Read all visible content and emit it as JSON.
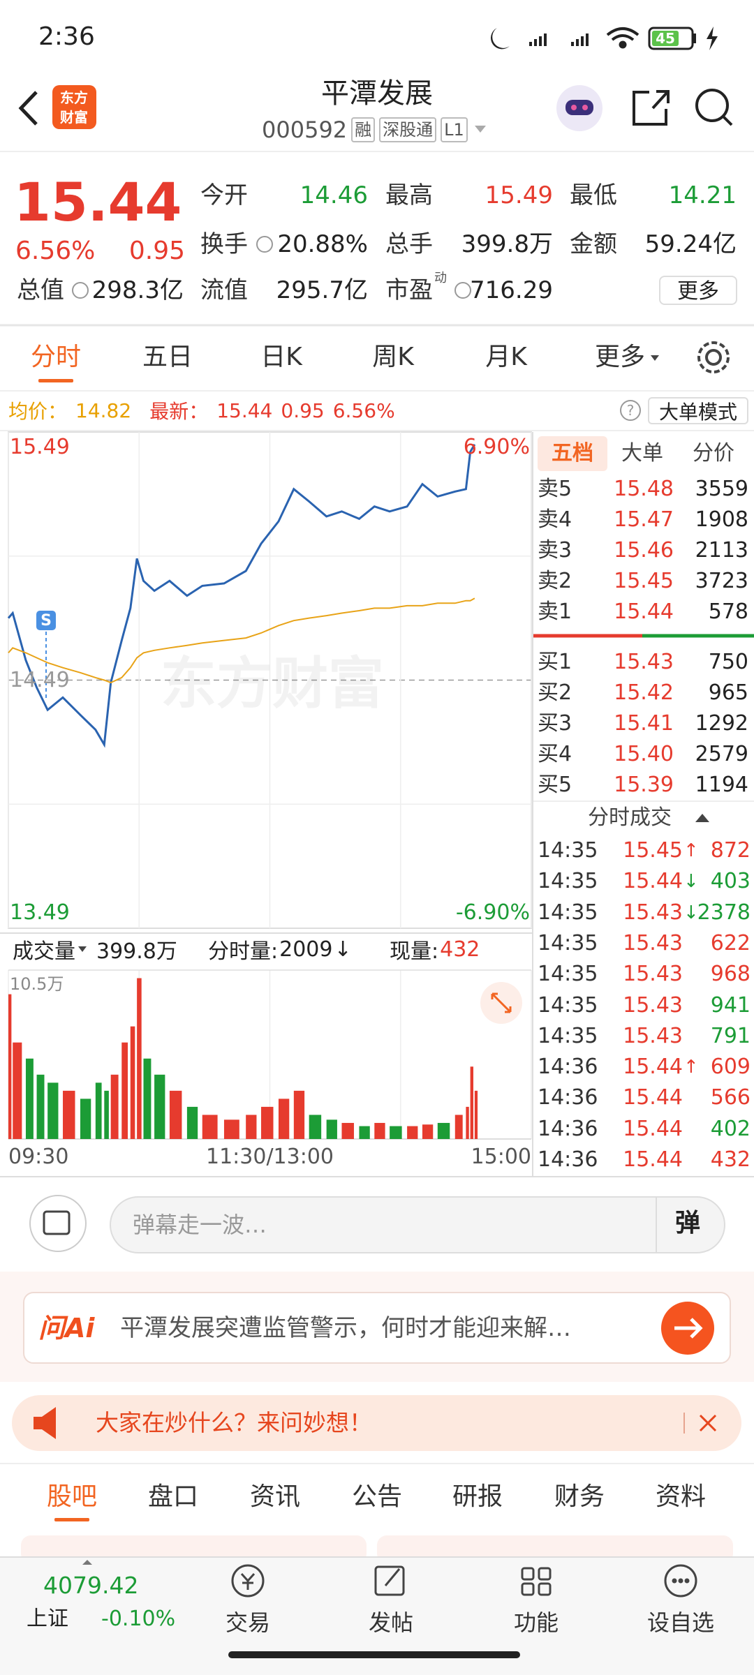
{
  "status_bar": {
    "time": "2:36",
    "battery": "45"
  },
  "header": {
    "logo": [
      "东方",
      "财富"
    ],
    "title": "平潭发展",
    "code": "000592",
    "tags": [
      "融",
      "深股通",
      "L1"
    ]
  },
  "quote": {
    "price": "15.44",
    "change_pct": "6.56%",
    "change": "0.95",
    "more": "更多",
    "fields": [
      {
        "label": "今开",
        "value": "14.46",
        "color": "#1c9c36"
      },
      {
        "label": "最高",
        "value": "15.49",
        "color": "#e63b2e"
      },
      {
        "label": "最低",
        "value": "14.21",
        "color": "#1c9c36"
      },
      {
        "label": "换手",
        "value": "20.88%"
      },
      {
        "label": "总手",
        "value": "399.8万"
      },
      {
        "label": "金额",
        "value": "59.24亿"
      },
      {
        "label": "总值",
        "value": "298.3亿"
      },
      {
        "label": "流值",
        "value": "295.7亿"
      },
      {
        "label": "市盈",
        "sup": "动",
        "value": "716.29"
      }
    ]
  },
  "chart_tabs": [
    "分时",
    "五日",
    "日K",
    "周K",
    "月K",
    "更多"
  ],
  "info_line": {
    "avg_label": "均价：",
    "avg": "14.82",
    "last_label": "最新：",
    "last": "15.44",
    "change": "0.95",
    "change_pct": "6.56%",
    "help": "?",
    "mode": "大单模式"
  },
  "chart": {
    "type": "line",
    "watermark": "东方财富",
    "marker": "S",
    "x": [
      0,
      2,
      8,
      13,
      18,
      25,
      33,
      40,
      44,
      47,
      52,
      56,
      59,
      62,
      67,
      74,
      82,
      89,
      99,
      109,
      116,
      124,
      131,
      138,
      146,
      153,
      161,
      168,
      175,
      183,
      190,
      197,
      205,
      210,
      212,
      214
    ],
    "xlim": [
      0,
      240
    ],
    "xticks": [
      {
        "value": 0,
        "label": "09:30"
      },
      {
        "value": 120,
        "label": "11:30/13:00"
      },
      {
        "value": 240,
        "label": "15:00"
      }
    ],
    "ylim": [
      13.49,
      15.49
    ],
    "yticks": [
      13.49,
      14.49,
      15.49
    ],
    "pct_labels": [
      "6.90%",
      "-6.90%"
    ],
    "series": [
      {
        "color": "#2a63b0",
        "values": [
          14.74,
          14.76,
          14.57,
          14.46,
          14.37,
          14.42,
          14.35,
          14.29,
          14.23,
          14.48,
          14.65,
          14.78,
          14.98,
          14.89,
          14.85,
          14.89,
          14.83,
          14.87,
          14.88,
          14.93,
          15.04,
          15.13,
          15.26,
          15.21,
          15.15,
          15.17,
          15.14,
          15.19,
          15.17,
          15.19,
          15.28,
          15.23,
          15.25,
          15.26,
          15.41,
          15.44
        ]
      },
      {
        "color": "#e8a317",
        "values": [
          14.6,
          14.62,
          14.6,
          14.58,
          14.56,
          14.54,
          14.52,
          14.5,
          14.49,
          14.48,
          14.5,
          14.54,
          14.58,
          14.6,
          14.61,
          14.62,
          14.63,
          14.64,
          14.65,
          14.66,
          14.68,
          14.71,
          14.73,
          14.74,
          14.75,
          14.76,
          14.77,
          14.78,
          14.78,
          14.79,
          14.79,
          14.8,
          14.8,
          14.81,
          14.81,
          14.82
        ]
      }
    ],
    "volume": {
      "type": "bar",
      "header": {
        "label": "成交量",
        "total": "399.8万",
        "minute_label": "分时量:",
        "minute": "2009",
        "arrow": "↓",
        "now_label": "现量:",
        "now": "432"
      },
      "values": [
        90000,
        60000,
        50000,
        40000,
        35000,
        30000,
        25000,
        35000,
        30000,
        40000,
        60000,
        70000,
        100000,
        50000,
        40000,
        30000,
        20000,
        15000,
        12000,
        15000,
        20000,
        25000,
        30000,
        15000,
        12000,
        10000,
        8000,
        10000,
        8000,
        8000,
        9000,
        10000,
        15000,
        20000,
        45000,
        30000
      ],
      "ylim": [
        0,
        105000
      ],
      "yticks": [
        {
          "value": 105000,
          "label": "10.5万"
        }
      ],
      "up_color": "#e63b2e",
      "down_color": "#1c9c36"
    }
  },
  "order_book": {
    "tabs": [
      "五档",
      "大单",
      "分价"
    ],
    "asks": [
      {
        "label": "卖5",
        "price": "15.48",
        "volume": "3559"
      },
      {
        "label": "卖4",
        "price": "15.47",
        "volume": "1908"
      },
      {
        "label": "卖3",
        "price": "15.46",
        "volume": "2113"
      },
      {
        "label": "卖2",
        "price": "15.45",
        "volume": "3723"
      },
      {
        "label": "卖1",
        "price": "15.44",
        "volume": "578"
      }
    ],
    "bids": [
      {
        "label": "买1",
        "price": "15.43",
        "volume": "750"
      },
      {
        "label": "买2",
        "price": "15.42",
        "volume": "965"
      },
      {
        "label": "买3",
        "price": "15.41",
        "volume": "1292"
      },
      {
        "label": "买4",
        "price": "15.40",
        "volume": "2579"
      },
      {
        "label": "买5",
        "price": "15.39",
        "volume": "1194"
      }
    ]
  },
  "trades": {
    "title": "分时成交",
    "rows": [
      {
        "time": "14:35",
        "price": "15.45",
        "arrow": "↑",
        "volume": "872",
        "color": "#e63b2e"
      },
      {
        "time": "14:35",
        "price": "15.44",
        "arrow": "↓",
        "volume": "403",
        "color": "#1c9c36"
      },
      {
        "time": "14:35",
        "price": "15.43",
        "arrow": "↓",
        "volume": "2378",
        "color": "#1c9c36"
      },
      {
        "time": "14:35",
        "price": "15.43",
        "volume": "622",
        "color": "#e63b2e"
      },
      {
        "time": "14:35",
        "price": "15.43",
        "volume": "968",
        "color": "#e63b2e"
      },
      {
        "time": "14:35",
        "price": "15.43",
        "volume": "941",
        "color": "#1c9c36"
      },
      {
        "time": "14:35",
        "price": "15.43",
        "volume": "791",
        "color": "#1c9c36"
      },
      {
        "time": "14:36",
        "price": "15.44",
        "arrow": "↑",
        "volume": "609",
        "color": "#e63b2e"
      },
      {
        "time": "14:36",
        "price": "15.44",
        "volume": "566",
        "color": "#e63b2e"
      },
      {
        "time": "14:36",
        "price": "15.44",
        "volume": "402",
        "color": "#1c9c36"
      },
      {
        "time": "14:36",
        "price": "15.44",
        "volume": "432",
        "color": "#e63b2e"
      }
    ]
  },
  "comment": {
    "placeholder": "弹幕走一波…",
    "button": "弹"
  },
  "ai": {
    "brand": "问Ai",
    "text": "平潭发展突遭监管警示，何时才能迎来解…"
  },
  "banner": {
    "text": "大家在炒什么？来问妙想！"
  },
  "bottom_tabs": [
    "股吧",
    "盘口",
    "资讯",
    "公告",
    "研报",
    "财务",
    "资料"
  ],
  "nav": {
    "index_value": "4079.42",
    "index_name": "上证",
    "index_change": "-0.10%",
    "items": [
      "交易",
      "发帖",
      "功能",
      "设自选"
    ]
  }
}
